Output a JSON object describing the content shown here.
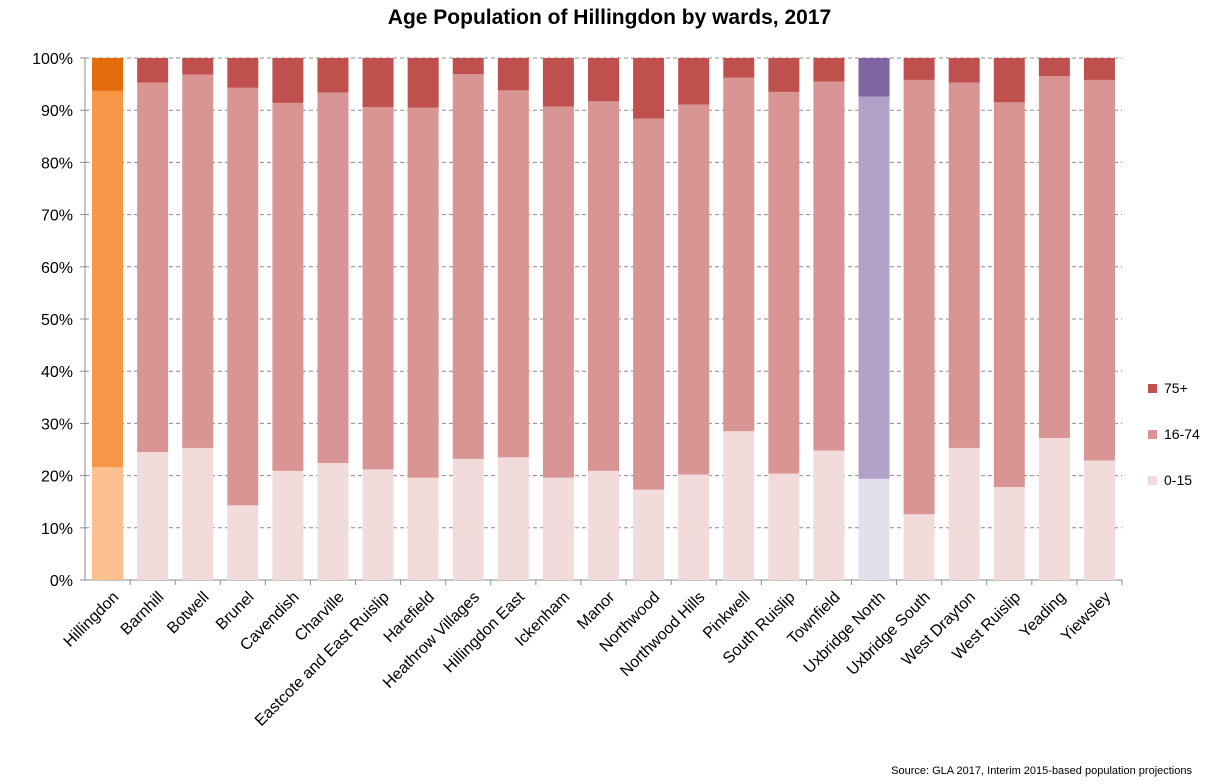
{
  "chart_data": {
    "type": "bar",
    "stacked": true,
    "title": "Age Population of Hillingdon by wards, 2017",
    "xlabel": "",
    "ylabel": "",
    "ylim": [
      0,
      100
    ],
    "y_ticks": [
      "0%",
      "10%",
      "20%",
      "30%",
      "40%",
      "50%",
      "60%",
      "70%",
      "80%",
      "90%",
      "100%"
    ],
    "grid": true,
    "legend_position": "right",
    "categories": [
      "Hillingdon",
      "Barnhill",
      "Botwell",
      "Brunel",
      "Cavendish",
      "Charville",
      "Eastcote and East Ruislip",
      "Harefield",
      "Heathrow Villages",
      "Hillingdon East",
      "Ickenham",
      "Manor",
      "Northwood",
      "Northwood Hills",
      "Pinkwell",
      "South Ruislip",
      "Townfield",
      "Uxbridge North",
      "Uxbridge South",
      "West Drayton",
      "West Ruislip",
      "Yeading",
      "Yiewsley"
    ],
    "series": [
      {
        "name": "0-15",
        "color": "#f2dcdb",
        "values": [
          21.6,
          24.5,
          25.3,
          14.3,
          20.9,
          22.4,
          21.2,
          19.6,
          23.2,
          23.5,
          19.6,
          20.9,
          17.3,
          20.2,
          28.5,
          20.4,
          24.8,
          19.4,
          12.6,
          25.3,
          17.8,
          27.2,
          22.9
        ]
      },
      {
        "name": "16-74",
        "color": "#d99594",
        "values": [
          72.1,
          70.8,
          71.5,
          80.0,
          70.5,
          71.0,
          69.4,
          70.9,
          73.7,
          70.3,
          71.1,
          70.8,
          71.1,
          70.9,
          67.7,
          73.1,
          70.7,
          73.2,
          83.2,
          70.0,
          73.7,
          69.3,
          72.9
        ]
      },
      {
        "name": "75+",
        "color": "#c0504d",
        "values": [
          6.3,
          4.7,
          3.2,
          5.7,
          8.6,
          6.6,
          9.4,
          9.5,
          3.1,
          6.2,
          9.3,
          8.3,
          11.6,
          8.9,
          3.8,
          6.5,
          4.5,
          7.4,
          4.2,
          4.7,
          8.5,
          3.5,
          4.2
        ]
      }
    ],
    "highlight_colors": {
      "Hillingdon": [
        "#fac090",
        "#f79646",
        "#e46c0a"
      ],
      "Uxbridge North": [
        "#e4dfec",
        "#b1a0c7",
        "#8064a2"
      ]
    }
  },
  "source": "Source: GLA 2017, Interim 2015-based population projections"
}
